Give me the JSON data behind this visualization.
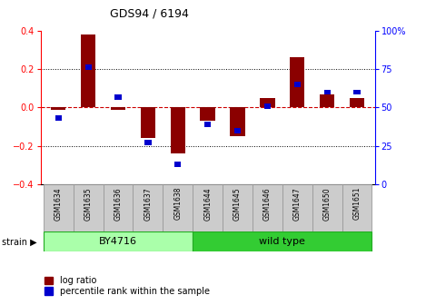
{
  "title": "GDS94 / 6194",
  "samples": [
    "GSM1634",
    "GSM1635",
    "GSM1636",
    "GSM1637",
    "GSM1638",
    "GSM1644",
    "GSM1645",
    "GSM1646",
    "GSM1647",
    "GSM1650",
    "GSM1651"
  ],
  "log_ratio": [
    -0.01,
    0.38,
    -0.01,
    -0.16,
    -0.24,
    -0.07,
    -0.15,
    0.05,
    0.26,
    0.07,
    0.05
  ],
  "percentile": [
    43,
    76,
    57,
    27,
    13,
    39,
    35,
    51,
    65,
    60,
    60
  ],
  "strain_groups": [
    {
      "label": "BY4716",
      "start": 0,
      "end": 5,
      "color": "#90EE90"
    },
    {
      "label": "wild type",
      "start": 5,
      "end": 11,
      "color": "#32CD32"
    }
  ],
  "bar_color_red": "#8B0000",
  "dot_color": "#0000CD",
  "bg_color": "#FFFFFF",
  "ylim_left": [
    -0.4,
    0.4
  ],
  "ylim_right": [
    0,
    100
  ],
  "yticks_left": [
    -0.4,
    -0.2,
    0.0,
    0.2,
    0.4
  ],
  "yticks_right": [
    0,
    25,
    50,
    75,
    100
  ],
  "zero_line_color": "#CC0000",
  "sample_box_color": "#CCCCCC",
  "sample_box_edge": "#999999",
  "by4716_color": "#AAFFAA",
  "wildtype_color": "#33CC33",
  "strain_edge_color": "#22AA22"
}
